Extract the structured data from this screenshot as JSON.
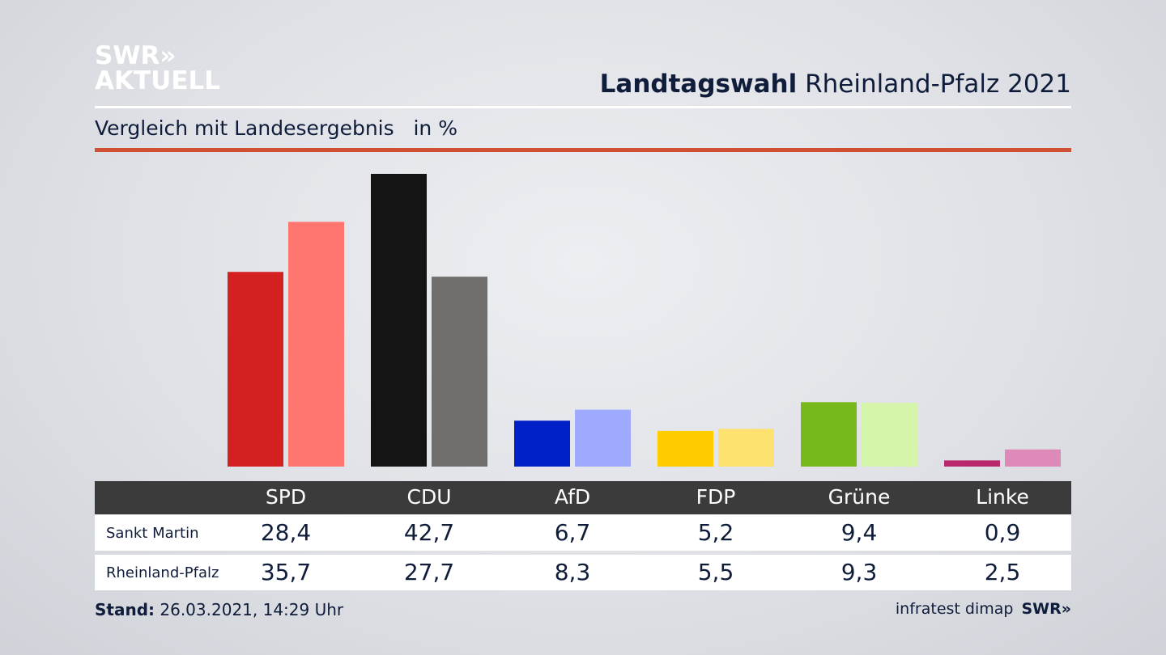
{
  "logo": {
    "line1": "SWR»",
    "line2": "AKTUELL"
  },
  "header": {
    "title_bold": "Landtagswahl",
    "title_rest": "Rheinland-Pfalz 2021",
    "subtitle": "Vergleich mit Landesergebnis   in %"
  },
  "chart_data": {
    "type": "bar",
    "title": "Landtagswahl Rheinland-Pfalz 2021 – Vergleich mit Landesergebnis",
    "ylabel": "in %",
    "ylim": [
      0,
      42.7
    ],
    "categories": [
      "SPD",
      "CDU",
      "AfD",
      "FDP",
      "Grüne",
      "Linke"
    ],
    "series": [
      {
        "name": "Sankt Martin",
        "values": [
          "28,4",
          "42,7",
          "6,7",
          "5,2",
          "9,4",
          "0,9"
        ],
        "colors": [
          "#d42020",
          "#141414",
          "#0020c8",
          "#ffcc00",
          "#77b91a",
          "#b8286c"
        ]
      },
      {
        "name": "Rheinland-Pfalz",
        "values": [
          "35,7",
          "27,7",
          "8,3",
          "5,5",
          "9,3",
          "2,5"
        ],
        "colors": [
          "#ff7570",
          "#706e6d",
          "#9daafe",
          "#fde270",
          "#d5f5aa",
          "#de8ab8"
        ]
      }
    ]
  },
  "footer": {
    "stand_label": "Stand:",
    "stand_value": "26.03.2021, 14:29 Uhr",
    "source": "infratest dimap",
    "brand": "SWR»"
  }
}
